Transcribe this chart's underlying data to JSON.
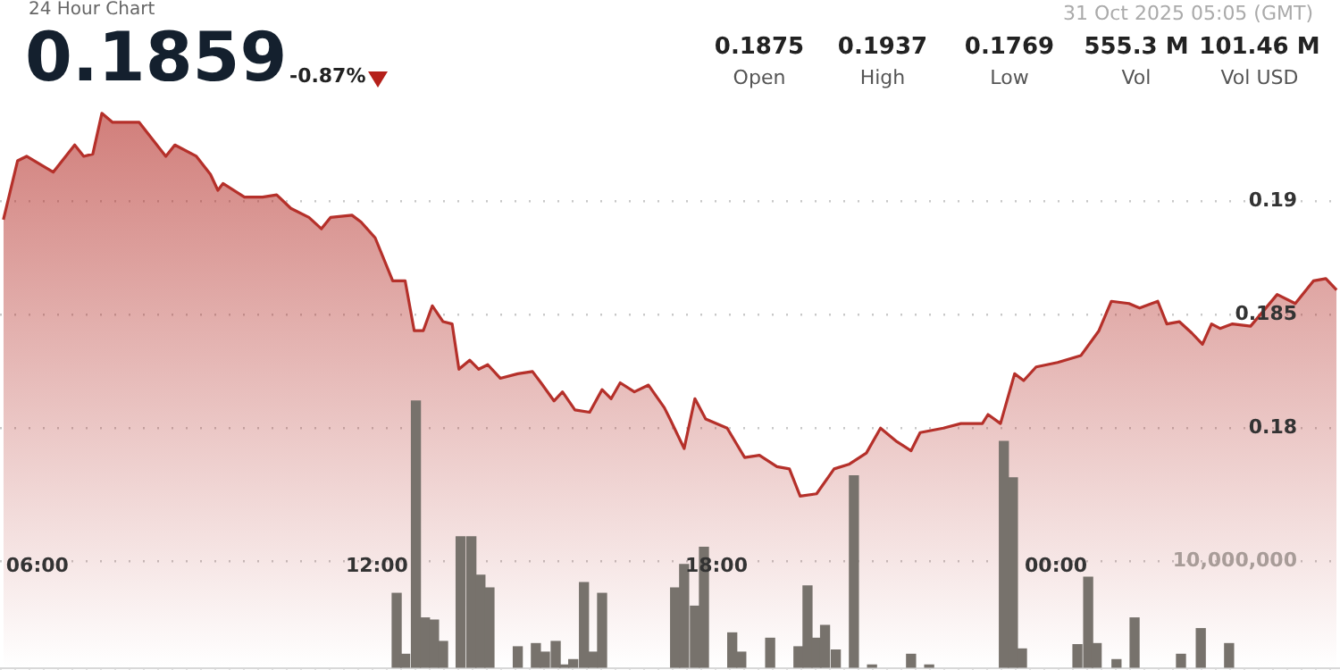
{
  "chart_data": {
    "type": "area",
    "title": "24 Hour Chart",
    "annotations": [
      "0.1859",
      "-0.87%",
      "31 Oct 2025 05:05 (GMT)",
      "0.1875",
      "Open",
      "0.1937",
      "High",
      "0.1769",
      "Low",
      "555.3 M",
      "Vol",
      "101.46 M",
      "Vol USD"
    ],
    "xlim": [
      5.34,
      29.02
    ],
    "xticks": [
      {
        "value": 6,
        "label": "06:00"
      },
      {
        "value": 12,
        "label": "12:00"
      },
      {
        "value": 18,
        "label": "18:00"
      },
      {
        "value": 24,
        "label": "00:00"
      }
    ],
    "ylim": [
      0.1694,
      0.1989
    ],
    "yticks": [
      0.18,
      0.185,
      0.19
    ],
    "y2lim": [
      0,
      62500000
    ],
    "y2ticks": [
      {
        "value": 0,
        "label": null
      },
      {
        "value": 10000000,
        "label": "10,000,000"
      }
    ],
    "grid": "y",
    "series": [
      {
        "color": "#b5302a",
        "x": [
          5.4,
          5.65,
          5.81,
          6.28,
          6.66,
          6.82,
          6.98,
          7.14,
          7.33,
          7.8,
          8.27,
          8.43,
          8.81,
          9.06,
          9.19,
          9.28,
          9.66,
          9.98,
          10.23,
          10.48,
          10.8,
          11.02,
          11.18,
          11.56,
          11.72,
          11.97,
          12.28,
          12.5,
          12.66,
          12.82,
          12.98,
          13.17,
          13.33,
          13.45,
          13.64,
          13.8,
          13.96,
          14.18,
          14.49,
          14.75,
          14.9,
          15.13,
          15.28,
          15.5,
          15.76,
          15.98,
          16.14,
          16.3,
          16.55,
          16.8,
          17.08,
          17.18,
          17.43,
          17.62,
          17.81,
          18.19,
          18.5,
          18.76,
          19.07,
          19.29,
          19.48,
          19.77,
          20.08,
          20.34,
          20.65,
          20.9,
          21.19,
          21.44,
          21.6,
          22.01,
          22.32,
          22.7,
          22.8,
          23.02,
          23.27,
          23.43,
          23.65,
          24.03,
          24.44,
          24.76,
          24.98,
          25.29,
          25.48,
          25.8,
          25.96,
          26.18,
          26.4,
          26.59,
          26.75,
          26.9,
          27.12,
          27.44,
          27.91,
          28.23,
          28.55,
          28.77,
          28.96
        ],
        "values": [
          0.1892,
          0.1918,
          0.192,
          0.1913,
          0.1925,
          0.192,
          0.1921,
          0.1939,
          0.1935,
          0.1935,
          0.192,
          0.1925,
          0.192,
          0.1912,
          0.1905,
          0.1908,
          0.1902,
          0.1902,
          0.1903,
          0.1897,
          0.1893,
          0.1888,
          0.1893,
          0.1894,
          0.1891,
          0.1884,
          0.1865,
          0.1865,
          0.1843,
          0.1843,
          0.1854,
          0.1847,
          0.1846,
          0.1826,
          0.183,
          0.1826,
          0.1828,
          0.1822,
          0.1824,
          0.1825,
          0.182,
          0.1812,
          0.1816,
          0.1808,
          0.1807,
          0.1817,
          0.1813,
          0.182,
          0.1816,
          0.1819,
          0.1809,
          0.1804,
          0.1791,
          0.1813,
          0.1804,
          0.18,
          0.1787,
          0.1788,
          0.1783,
          0.1782,
          0.177,
          0.1771,
          0.1782,
          0.1784,
          0.1789,
          0.18,
          0.1794,
          0.179,
          0.1798,
          0.18,
          0.1802,
          0.1802,
          0.1806,
          0.1802,
          0.1824,
          0.1821,
          0.1827,
          0.1829,
          0.1832,
          0.1843,
          0.1856,
          0.1855,
          0.1853,
          0.1856,
          0.1846,
          0.1847,
          0.1842,
          0.1837,
          0.1846,
          0.1844,
          0.1846,
          0.1845,
          0.1859,
          0.1855,
          0.1865,
          0.1866,
          0.1861
        ]
      },
      {
        "type": "bar",
        "axis": "y2",
        "color": "#77726c",
        "x": [
          12.35,
          12.5,
          12.69,
          12.85,
          13.01,
          13.17,
          13.48,
          13.67,
          13.83,
          13.99,
          14.49,
          14.81,
          14.97,
          15.16,
          15.31,
          15.47,
          15.66,
          15.82,
          15.98,
          17.27,
          17.43,
          17.62,
          17.78,
          18.28,
          18.44,
          18.95,
          19.45,
          19.61,
          19.77,
          19.92,
          20.11,
          20.43,
          20.75,
          21.44,
          21.76,
          23.08,
          23.24,
          23.4,
          24.38,
          24.57,
          24.72,
          25.07,
          25.39,
          26.21,
          26.56,
          27.06
        ],
        "values": [
          7000000,
          1300000,
          25000000,
          4700000,
          4500000,
          2500000,
          12300000,
          12300000,
          8700000,
          7500000,
          2000000,
          2300000,
          1500000,
          2500000,
          300000,
          800000,
          8000000,
          1500000,
          7000000,
          7500000,
          9700000,
          5800000,
          11300000,
          3300000,
          1500000,
          2800000,
          2000000,
          7700000,
          2800000,
          4000000,
          1700000,
          18000000,
          300000,
          1300000,
          300000,
          21200000,
          17800000,
          1800000,
          2200000,
          8500000,
          2300000,
          800000,
          4700000,
          1300000,
          3700000,
          2300000
        ]
      }
    ]
  }
}
